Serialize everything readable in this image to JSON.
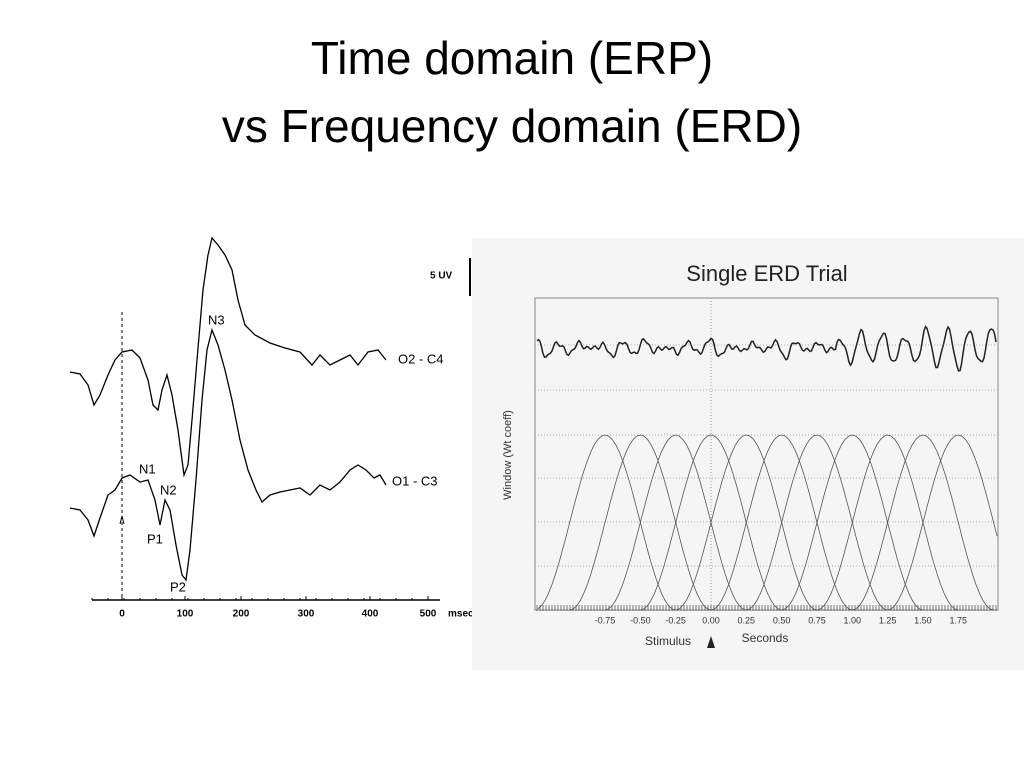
{
  "title": {
    "lines": [
      "Time domain (ERP)",
      "vs Frequency domain (ERD)"
    ]
  },
  "erp_figure": {
    "scale_label": "5 UV",
    "trace_labels": [
      "O2 - C4",
      "O1 - C3"
    ],
    "peak_labels": [
      "N3",
      "N1",
      "N2",
      "P1",
      "P2"
    ],
    "x_ticks": [
      "0",
      "100",
      "200",
      "300",
      "400",
      "500"
    ],
    "x_unit": "msec"
  },
  "erd_figure": {
    "title": "Single ERD Trial",
    "y_label": "Window (Wt coeff)",
    "x_ticks": [
      "-0.75",
      "-0.50",
      "-0.25",
      "0.00",
      "0.25",
      "0.50",
      "0.75",
      "1.00",
      "1.25",
      "1.50",
      "1.75"
    ],
    "stimulus_label": "Stimulus",
    "x_label": "Seconds"
  }
}
